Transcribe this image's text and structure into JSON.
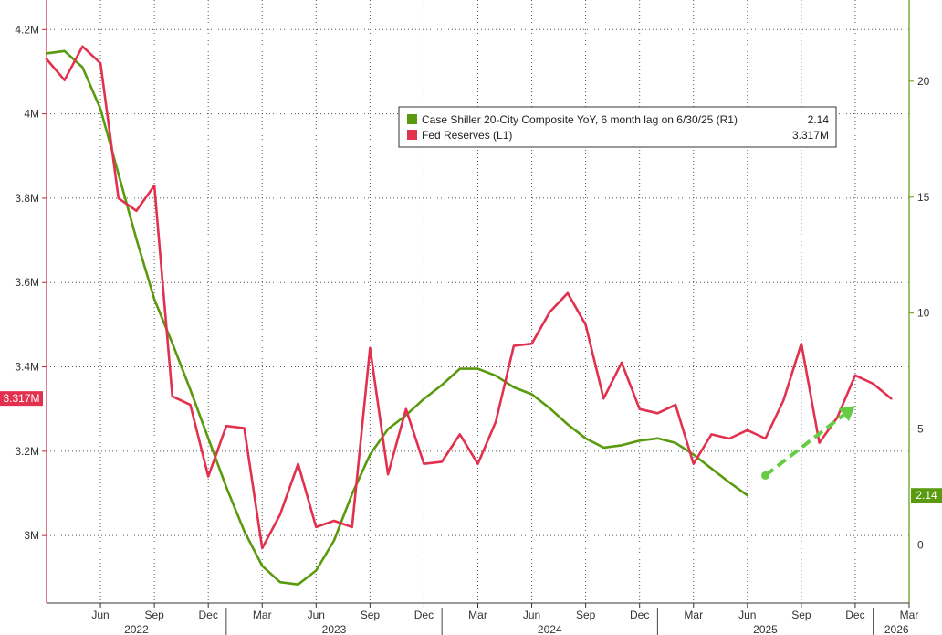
{
  "chart_data": {
    "type": "line",
    "title": "",
    "x_range": [
      "2022-03",
      "2026-03"
    ],
    "x_ticks": [
      "Jun",
      "Sep",
      "Dec",
      "Mar",
      "Jun",
      "Sep",
      "Dec",
      "Mar",
      "Jun",
      "Sep",
      "Dec",
      "Mar",
      "Jun",
      "Sep",
      "Dec",
      "Mar"
    ],
    "year_labels": [
      "2022",
      "2023",
      "2024",
      "2025",
      "2026"
    ],
    "left_axis": {
      "ticks": [
        "3M",
        "3.2M",
        "3.4M",
        "3.6M",
        "3.8M",
        "4M",
        "4.2M"
      ],
      "range": [
        2.84,
        4.27
      ]
    },
    "right_axis": {
      "ticks": [
        "0",
        "5",
        "10",
        "15",
        "20"
      ],
      "range": [
        -2.5,
        23.5
      ]
    },
    "grid": true,
    "legend_position": "top-center",
    "series": [
      {
        "name": "Case Shiller 20-City Composite YoY, 6 month lag on 6/30/25 (R1)",
        "last_value": "2.14",
        "axis": "right",
        "color": "#5a9a0e",
        "points": [
          [
            "2022-03",
            21.2
          ],
          [
            "2022-04",
            21.3
          ],
          [
            "2022-05",
            20.6
          ],
          [
            "2022-06",
            18.8
          ],
          [
            "2022-07",
            16.0
          ],
          [
            "2022-08",
            13.2
          ],
          [
            "2022-09",
            10.6
          ],
          [
            "2022-10",
            8.7
          ],
          [
            "2022-11",
            6.7
          ],
          [
            "2022-12",
            4.6
          ],
          [
            "2023-01",
            2.5
          ],
          [
            "2023-02",
            0.6
          ],
          [
            "2023-03",
            -0.9
          ],
          [
            "2023-04",
            -1.6
          ],
          [
            "2023-05",
            -1.7
          ],
          [
            "2023-06",
            -1.1
          ],
          [
            "2023-07",
            0.2
          ],
          [
            "2023-08",
            2.2
          ],
          [
            "2023-09",
            3.9
          ],
          [
            "2023-10",
            5.0
          ],
          [
            "2023-11",
            5.6
          ],
          [
            "2023-12",
            6.3
          ],
          [
            "2024-01",
            6.9
          ],
          [
            "2024-02",
            7.6
          ],
          [
            "2024-03",
            7.6
          ],
          [
            "2024-04",
            7.3
          ],
          [
            "2024-05",
            6.8
          ],
          [
            "2024-06",
            6.5
          ],
          [
            "2024-07",
            5.9
          ],
          [
            "2024-08",
            5.2
          ],
          [
            "2024-09",
            4.6
          ],
          [
            "2024-10",
            4.2
          ],
          [
            "2024-11",
            4.3
          ],
          [
            "2024-12",
            4.5
          ],
          [
            "2025-01",
            4.6
          ],
          [
            "2025-02",
            4.4
          ],
          [
            "2025-03",
            3.9
          ],
          [
            "2025-04",
            3.3
          ],
          [
            "2025-05",
            2.7
          ],
          [
            "2025-06",
            2.14
          ]
        ]
      },
      {
        "name": "Fed Reserves (L1)",
        "last_value": "3.317M",
        "axis": "left",
        "color": "#e2314f",
        "points": [
          [
            "2022-03",
            4.13
          ],
          [
            "2022-04",
            4.08
          ],
          [
            "2022-05",
            4.16
          ],
          [
            "2022-06",
            4.12
          ],
          [
            "2022-07",
            3.8
          ],
          [
            "2022-08",
            3.77
          ],
          [
            "2022-09",
            3.83
          ],
          [
            "2022-10",
            3.33
          ],
          [
            "2022-11",
            3.31
          ],
          [
            "2022-12",
            3.14
          ],
          [
            "2023-01",
            3.26
          ],
          [
            "2023-02",
            3.255
          ],
          [
            "2023-03",
            2.97
          ],
          [
            "2023-04",
            3.05
          ],
          [
            "2023-05",
            3.17
          ],
          [
            "2023-06",
            3.02
          ],
          [
            "2023-07",
            3.035
          ],
          [
            "2023-08",
            3.02
          ],
          [
            "2023-09",
            3.445
          ],
          [
            "2023-10",
            3.145
          ],
          [
            "2023-11",
            3.3
          ],
          [
            "2023-12",
            3.17
          ],
          [
            "2024-01",
            3.175
          ],
          [
            "2024-02",
            3.24
          ],
          [
            "2024-03",
            3.17
          ],
          [
            "2024-04",
            3.27
          ],
          [
            "2024-05",
            3.45
          ],
          [
            "2024-06",
            3.455
          ],
          [
            "2024-07",
            3.53
          ],
          [
            "2024-08",
            3.575
          ],
          [
            "2024-09",
            3.5
          ],
          [
            "2024-10",
            3.325
          ],
          [
            "2024-11",
            3.41
          ],
          [
            "2024-12",
            3.3
          ],
          [
            "2025-01",
            3.29
          ],
          [
            "2025-02",
            3.31
          ],
          [
            "2025-03",
            3.17
          ],
          [
            "2025-04",
            3.24
          ],
          [
            "2025-05",
            3.23
          ],
          [
            "2025-06",
            3.25
          ],
          [
            "2025-07",
            3.23
          ],
          [
            "2025-08",
            3.32
          ],
          [
            "2025-09",
            3.455
          ],
          [
            "2025-10",
            3.22
          ],
          [
            "2025-11",
            3.28
          ],
          [
            "2025-12",
            3.38
          ],
          [
            "2026-01",
            3.36
          ],
          [
            "2026-02",
            3.325
          ]
        ]
      }
    ],
    "annotation": {
      "type": "dashed-arrow",
      "color": "#66cc44",
      "from": [
        "2025-07",
        3.0
      ],
      "to": [
        "2025-12",
        6.0
      ],
      "axis": "right"
    }
  }
}
